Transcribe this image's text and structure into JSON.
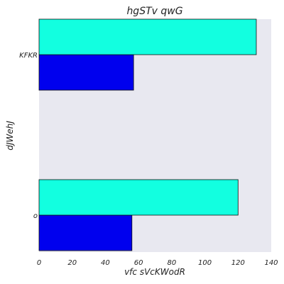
{
  "chart_data": {
    "type": "bar",
    "orientation": "horizontal",
    "title": "hgSTv qwG",
    "xlabel": "vfc sVcKWodR",
    "ylabel": "dJWehJ",
    "categories": [
      "o",
      "KFKR"
    ],
    "series": [
      {
        "color": "#0000ee",
        "values": [
          56,
          57
        ]
      },
      {
        "color": "#12ffe0",
        "values": [
          120,
          131
        ]
      }
    ],
    "xlim": [
      0,
      140
    ],
    "xticks": [
      0,
      20,
      40,
      60,
      80,
      100,
      120,
      140
    ],
    "grid": false,
    "legend": false,
    "plot_background": "#e8e8f0"
  }
}
